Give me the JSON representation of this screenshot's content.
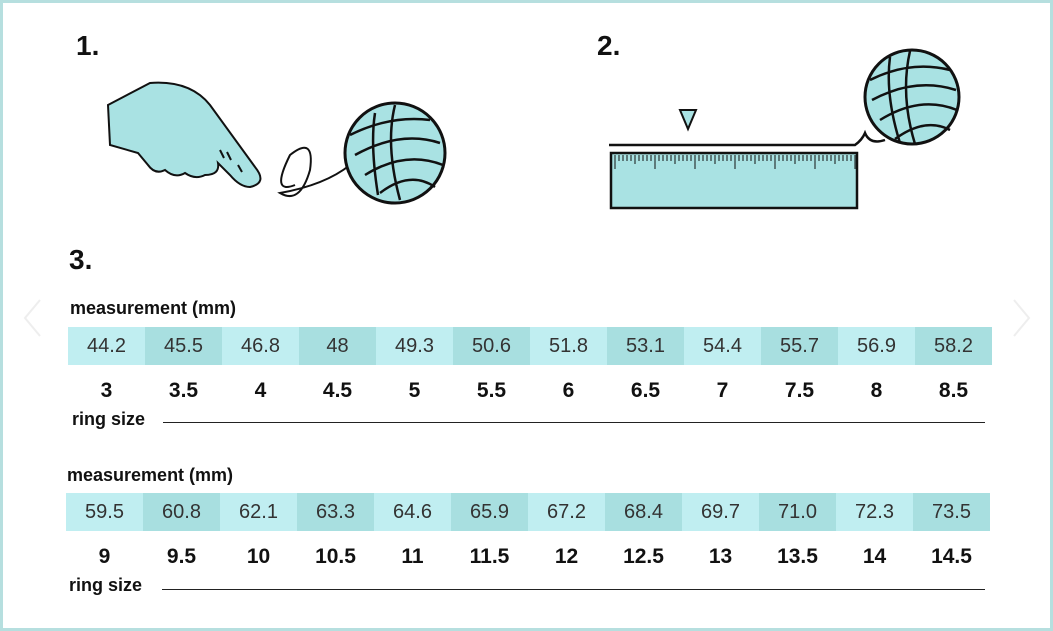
{
  "steps": [
    "1.",
    "2.",
    "3."
  ],
  "colors": {
    "cell_light": "#c0eef1",
    "cell_dark": "#a8dfe0",
    "illustration": "#a9e2e3",
    "border": "#b6dfdf"
  },
  "tables": [
    {
      "measurement_label": "measurement (mm)",
      "ring_size_label": "ring size",
      "measurements": [
        "44.2",
        "45.5",
        "46.8",
        "48",
        "49.3",
        "50.6",
        "51.8",
        "53.1",
        "54.4",
        "55.7",
        "56.9",
        "58.2"
      ],
      "sizes": [
        "3",
        "3.5",
        "4",
        "4.5",
        "5",
        "5.5",
        "6",
        "6.5",
        "7",
        "7.5",
        "8",
        "8.5"
      ]
    },
    {
      "measurement_label": "measurement (mm)",
      "ring_size_label": "ring size",
      "measurements": [
        "59.5",
        "60.8",
        "62.1",
        "63.3",
        "64.6",
        "65.9",
        "67.2",
        "68.4",
        "69.7",
        "71.0",
        "72.3",
        "73.5"
      ],
      "sizes": [
        "9",
        "9.5",
        "10",
        "10.5",
        "11",
        "11.5",
        "12",
        "12.5",
        "13",
        "13.5",
        "14",
        "14.5"
      ]
    }
  ]
}
